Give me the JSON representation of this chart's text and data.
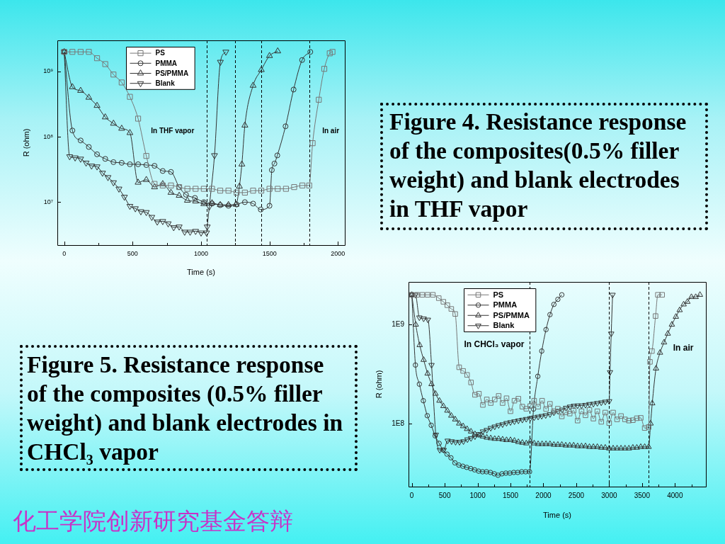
{
  "chart_data": [
    {
      "type": "line",
      "xlabel": "Time (s)",
      "ylabel": "R (ohm)",
      "log": "y",
      "legend": "top",
      "xlim": [
        -50,
        2050
      ],
      "xticks": [
        0,
        {
          "value": 250,
          "label": null
        },
        500,
        {
          "value": 750,
          "label": null
        },
        1000,
        {
          "value": 1250,
          "label": null
        },
        1500,
        {
          "value": 1750,
          "label": null
        },
        2000
      ],
      "ylim": [
        2200000.0,
        3000000000.0
      ],
      "yticks": [
        {
          "value": 10000000.0,
          "label": "10⁷"
        },
        {
          "value": 100000000.0,
          "label": "10⁸"
        },
        {
          "value": 1000000000.0,
          "label": "10⁹"
        }
      ],
      "ref_lines": [
        {
          "axis": "x",
          "value": 1040,
          "line_style": "dashed"
        },
        {
          "axis": "x",
          "value": 1250,
          "line_style": "dashed"
        },
        {
          "axis": "x",
          "value": 1440,
          "line_style": "dashed"
        },
        {
          "axis": "x",
          "value": 1790,
          "line_style": "dashed"
        }
      ],
      "annotations": [
        "Figure 4. Resistance response of the composites(0.5% filler weight) and blank electrodes in THF vapor",
        "In THF vapor",
        "In air"
      ],
      "series": [
        {
          "name": "PS",
          "color": "#777777",
          "marker": "square",
          "x": [
            0,
            60,
            120,
            180,
            240,
            300,
            360,
            420,
            480,
            540,
            600,
            660,
            720,
            780,
            840,
            900,
            960,
            1020,
            1080,
            1140,
            1200,
            1260,
            1320,
            1380,
            1440,
            1500,
            1560,
            1620,
            1680,
            1740,
            1790,
            1815,
            1860,
            1900,
            1940,
            1960
          ],
          "values": [
            2000000000.0,
            2000000000.0,
            2000000000.0,
            2000000000.0,
            1600000000.0,
            1300000000.0,
            900000000.0,
            680000000.0,
            410000000.0,
            190000000.0,
            51000000.0,
            19000000.0,
            18000000.0,
            18000000.0,
            17000000.0,
            16000000.0,
            16000000.0,
            16000000.0,
            16000000.0,
            15000000.0,
            15000000.0,
            14000000.0,
            14000000.0,
            15000000.0,
            15000000.0,
            16000000.0,
            16000000.0,
            16000000.0,
            17000000.0,
            18000000.0,
            18000000.0,
            80000000.0,
            370000000.0,
            1100000000.0,
            1900000000.0,
            2000000000.0
          ]
        },
        {
          "name": "PMMA",
          "color": "#333333",
          "marker": "circle",
          "x": [
            0,
            60,
            120,
            180,
            240,
            300,
            360,
            420,
            480,
            540,
            600,
            660,
            720,
            780,
            840,
            890,
            955,
            1020,
            1080,
            1140,
            1200,
            1260,
            1320,
            1380,
            1436,
            1500,
            1517,
            1536,
            1557,
            1617,
            1676,
            1738,
            1798
          ],
          "values": [
            2000000000.0,
            125000000.0,
            88000000.0,
            70000000.0,
            54000000.0,
            46000000.0,
            41000000.0,
            40000000.0,
            38000000.0,
            38000000.0,
            37000000.0,
            36000000.0,
            30000000.0,
            29000000.0,
            17000000.0,
            13000000.0,
            11600000.0,
            10000000.0,
            9500000.0,
            9000000.0,
            8800000.0,
            9200000.0,
            10000000.0,
            9500000.0,
            7700000.0,
            8800000.0,
            31000000.0,
            39000000.0,
            52000000.0,
            145000000.0,
            530000000.0,
            1500000000.0,
            2000000000.0
          ]
        },
        {
          "name": "PS/PMMA",
          "color": "#333333",
          "marker": "triangle",
          "x": [
            0,
            60,
            120,
            180,
            240,
            300,
            360,
            420,
            480,
            540,
            600,
            660,
            720,
            780,
            840,
            900,
            960,
            1020,
            1080,
            1140,
            1200,
            1255,
            1280,
            1298,
            1320,
            1380,
            1440,
            1500,
            1560
          ],
          "values": [
            2000000000.0,
            580000000.0,
            510000000.0,
            400000000.0,
            300000000.0,
            200000000.0,
            160000000.0,
            134000000.0,
            115000000.0,
            20000000.0,
            22000000.0,
            17000000.0,
            19000000.0,
            14000000.0,
            12600000.0,
            10600000.0,
            10300000.0,
            9400000.0,
            9700000.0,
            9100000.0,
            9100000.0,
            9200000.0,
            17400000.0,
            38000000.0,
            150000000.0,
            610000000.0,
            1060000000.0,
            1740000000.0,
            2050000000.0
          ]
        },
        {
          "name": "Blank",
          "color": "#333333",
          "marker": "triangle-down",
          "x": [
            0,
            40,
            80,
            120,
            160,
            200,
            240,
            280,
            320,
            360,
            400,
            440,
            480,
            520,
            560,
            600,
            640,
            680,
            720,
            760,
            800,
            840,
            880,
            920,
            960,
            1000,
            1040,
            1045,
            1060,
            1098,
            1141,
            1181
          ],
          "values": [
            2000000000.0,
            50000000.0,
            48000000.0,
            46000000.0,
            40000000.0,
            36000000.0,
            35000000.0,
            28000000.0,
            24000000.0,
            20000000.0,
            16000000.0,
            12000000.0,
            8700000.0,
            8000000.0,
            7200000.0,
            7000000.0,
            5900000.0,
            5000000.0,
            5100000.0,
            4700000.0,
            4100000.0,
            4200000.0,
            3500000.0,
            3500000.0,
            3600000.0,
            3400000.0,
            3400000.0,
            4200000.0,
            8500000.0,
            52000000.0,
            1400000000.0,
            2000000000.0
          ]
        }
      ]
    },
    {
      "type": "line",
      "xlabel": "Time (s)",
      "ylabel": "R (ohm)",
      "log": "y",
      "legend": "top",
      "xlim": [
        -50,
        4470
      ],
      "xticks": [
        0,
        {
          "value": 250,
          "label": null
        },
        500,
        {
          "value": 750,
          "label": null
        },
        1000,
        {
          "value": 1250,
          "label": null
        },
        1500,
        {
          "value": 1750,
          "label": null
        },
        2000,
        {
          "value": 2250,
          "label": null
        },
        2500,
        {
          "value": 2750,
          "label": null
        },
        3000,
        {
          "value": 3250,
          "label": null
        },
        3500,
        {
          "value": 3750,
          "label": null
        },
        4000,
        {
          "value": 4250,
          "label": null
        }
      ],
      "ylim": [
        23000000.0,
        2700000000.0
      ],
      "yticks": [
        {
          "value": 100000000.0,
          "label": "1E8"
        },
        {
          "value": 1000000000.0,
          "label": "1E9"
        }
      ],
      "ref_lines": [
        {
          "axis": "x",
          "value": 1790,
          "line_style": "dashed"
        },
        {
          "axis": "x",
          "value": 3000,
          "line_style": "dashed"
        },
        {
          "axis": "x",
          "value": 3600,
          "line_style": "dashed"
        }
      ],
      "annotations": [
        "Figure 5. Resistance response of the composites (0.5% filler weight) and blank electrodes in CHCl₃ vapor",
        "In CHCl₃ vapor",
        "In air"
      ],
      "series": [
        {
          "name": "PS",
          "color": "#777777",
          "marker": "square",
          "x": [
            0,
            80,
            160,
            240,
            320,
            410,
            480,
            540,
            600,
            660,
            720,
            780,
            840,
            900,
            960,
            1020,
            1080,
            1140,
            1200,
            1260,
            1320,
            1380,
            1440,
            1500,
            1560,
            1620,
            1680,
            1740,
            1800,
            1860,
            1920,
            1980,
            2040,
            2100,
            2160,
            2220,
            2280,
            2340,
            2400,
            2460,
            2520,
            2580,
            2640,
            2700,
            2760,
            2820,
            2880,
            2940,
            3000,
            3060,
            3120,
            3180,
            3240,
            3300,
            3360,
            3420,
            3480,
            3540,
            3600,
            3620,
            3650,
            3705,
            3740,
            3805
          ],
          "values": [
            2000000000.0,
            2000000000.0,
            2000000000.0,
            2000000000.0,
            2000000000.0,
            1850000000.0,
            1700000000.0,
            1570000000.0,
            1440000000.0,
            1280000000.0,
            370000000.0,
            340000000.0,
            310000000.0,
            260000000.0,
            195000000.0,
            200000000.0,
            154000000.0,
            175000000.0,
            161000000.0,
            175000000.0,
            190000000.0,
            161000000.0,
            180000000.0,
            133000000.0,
            170000000.0,
            178000000.0,
            148000000.0,
            141000000.0,
            150000000.0,
            170000000.0,
            148000000.0,
            170000000.0,
            140000000.0,
            158000000.0,
            133000000.0,
            141000000.0,
            118000000.0,
            130000000.0,
            126000000.0,
            135000000.0,
            107000000.0,
            133000000.0,
            121000000.0,
            137000000.0,
            112000000.0,
            133000000.0,
            104000000.0,
            129000000.0,
            101000000.0,
            129000000.0,
            110000000.0,
            119000000.0,
            110000000.0,
            107000000.0,
            108000000.0,
            113000000.0,
            114000000.0,
            90000000.0,
            92000000.0,
            420000000.0,
            540000000.0,
            1220000000.0,
            2000000000.0,
            2000000000.0
          ]
        },
        {
          "name": "PMMA",
          "color": "#333333",
          "marker": "circle",
          "x": [
            0,
            55,
            115,
            175,
            235,
            295,
            355,
            415,
            475,
            535,
            595,
            655,
            715,
            775,
            835,
            895,
            955,
            1015,
            1075,
            1135,
            1195,
            1255,
            1310,
            1370,
            1430,
            1490,
            1550,
            1610,
            1670,
            1730,
            1790,
            1850,
            1915,
            1975,
            2040,
            2100,
            2160,
            2220,
            2280
          ],
          "values": [
            2000000000.0,
            390000000.0,
            250000000.0,
            170000000.0,
            120000000.0,
            96000000.0,
            75000000.0,
            63000000.0,
            54000000.0,
            49000000.0,
            45000000.0,
            40000000.0,
            38000000.0,
            37000000.0,
            36000000.0,
            35000000.0,
            34000000.0,
            33000000.0,
            32500000.0,
            32500000.0,
            32000000.0,
            31000000.0,
            30000000.0,
            31000000.0,
            31500000.0,
            31500000.0,
            32000000.0,
            32000000.0,
            32500000.0,
            32500000.0,
            32500000.0,
            140000000.0,
            300000000.0,
            540000000.0,
            890000000.0,
            1260000000.0,
            1600000000.0,
            1800000000.0,
            2000000000.0
          ]
        },
        {
          "name": "PS/PMMA",
          "color": "#333333",
          "marker": "triangle",
          "x": [
            0,
            60,
            120,
            180,
            240,
            300,
            360,
            420,
            480,
            540,
            600,
            660,
            720,
            780,
            840,
            900,
            960,
            1020,
            1080,
            1140,
            1200,
            1260,
            1320,
            1380,
            1440,
            1500,
            1560,
            1620,
            1680,
            1740,
            1800,
            1860,
            1920,
            1980,
            2040,
            2100,
            2160,
            2220,
            2280,
            2340,
            2400,
            2460,
            2520,
            2580,
            2640,
            2700,
            2760,
            2820,
            2880,
            2940,
            3000,
            3060,
            3120,
            3180,
            3240,
            3300,
            3360,
            3420,
            3480,
            3540,
            3600,
            3630,
            3655,
            3712,
            3773,
            3834,
            3891,
            3953,
            4014,
            4071,
            4132,
            4189,
            4250,
            4315,
            4380
          ],
          "values": [
            2000000000.0,
            1000000000.0,
            620000000.0,
            440000000.0,
            320000000.0,
            250000000.0,
            200000000.0,
            170000000.0,
            150000000.0,
            135000000.0,
            120000000.0,
            110000000.0,
            100000000.0,
            94000000.0,
            88000000.0,
            83000000.0,
            78000000.0,
            76000000.0,
            74000000.0,
            72000000.0,
            71000000.0,
            70000000.0,
            70000000.0,
            69000000.0,
            68000000.0,
            68000000.0,
            67000000.0,
            65000000.0,
            64000000.0,
            63000000.0,
            66000000.0,
            63000000.0,
            62000000.0,
            62000000.0,
            62000000.0,
            62000000.0,
            61000000.0,
            61000000.0,
            61000000.0,
            60000000.0,
            60000000.0,
            60000000.0,
            59000000.0,
            59000000.0,
            59000000.0,
            58000000.0,
            58000000.0,
            58000000.0,
            57000000.0,
            57000000.0,
            56000000.0,
            56000000.0,
            56000000.0,
            56000000.0,
            56000000.0,
            56000000.0,
            57000000.0,
            57000000.0,
            58000000.0,
            58000000.0,
            58000000.0,
            100000000.0,
            160000000.0,
            360000000.0,
            520000000.0,
            660000000.0,
            810000000.0,
            1000000000.0,
            1200000000.0,
            1400000000.0,
            1600000000.0,
            1700000000.0,
            1900000000.0,
            1900000000.0,
            2000000000.0
          ]
        },
        {
          "name": "Blank",
          "color": "#333333",
          "marker": "triangle-down",
          "x": [
            0,
            55,
            115,
            180,
            245,
            300,
            365,
            425,
            485,
            545,
            605,
            665,
            725,
            785,
            845,
            900,
            960,
            1020,
            1080,
            1140,
            1200,
            1260,
            1320,
            1380,
            1440,
            1500,
            1560,
            1620,
            1680,
            1740,
            1800,
            1860,
            1920,
            1975,
            2035,
            2100,
            2160,
            2225,
            2285,
            2345,
            2405,
            2465,
            2520,
            2580,
            2640,
            2700,
            2760,
            2820,
            2880,
            2940,
            3000,
            3013,
            3031,
            3052
          ],
          "values": [
            2000000000.0,
            2000000000.0,
            1180000000.0,
            1150000000.0,
            1120000000.0,
            390000000.0,
            77000000.0,
            54000000.0,
            54000000.0,
            67000000.0,
            66000000.0,
            65000000.0,
            65000000.0,
            66000000.0,
            69000000.0,
            71000000.0,
            74000000.0,
            78000000.0,
            83000000.0,
            86000000.0,
            90000000.0,
            93000000.0,
            96000000.0,
            98000000.0,
            101000000.0,
            103000000.0,
            105000000.0,
            107000000.0,
            109000000.0,
            111000000.0,
            113000000.0,
            115000000.0,
            117000000.0,
            119000000.0,
            121000000.0,
            124000000.0,
            129000000.0,
            133000000.0,
            138000000.0,
            144000000.0,
            148000000.0,
            151000000.0,
            152000000.0,
            152000000.0,
            154000000.0,
            157000000.0,
            158000000.0,
            161000000.0,
            163000000.0,
            166000000.0,
            168000000.0,
            330000000.0,
            810000000.0,
            2000000000.0
          ]
        }
      ]
    },
    {
      "type": "other",
      "title": "化工学院创新研究基金答辩"
    }
  ]
}
